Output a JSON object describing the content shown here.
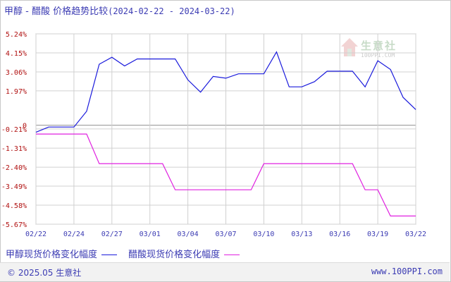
{
  "header": {
    "title": "甲醇 - 醋酸 价格趋势比较",
    "date_range": "(2024-02-22 - 2024-03-22)"
  },
  "watermark": {
    "name": "生意社",
    "url": "100PPI.COM"
  },
  "footer": {
    "copyright": "© 2025.05 生意社",
    "site": "www.100PPI.com"
  },
  "colors": {
    "methanol": "#1a1adc",
    "acetic": "#e020e0",
    "axis_text": "#b01010",
    "xtick_text": "#3b3bb3",
    "grid": "#d0d0d0"
  },
  "chart_data": {
    "type": "line",
    "ylim": [
      -5.67,
      5.24
    ],
    "y_ticks": [
      5.24,
      4.15,
      3.06,
      1.97,
      0,
      -0.21,
      -1.31,
      -2.4,
      -3.49,
      -4.58,
      -5.67
    ],
    "y_tick_labels": [
      "5.24%",
      "4.15%",
      "3.06%",
      "1.97%",
      "0",
      "-0.21%",
      "-1.31%",
      "-2.40%",
      "-3.49%",
      "-4.58%",
      "-5.67%"
    ],
    "x_ticks": [
      "02/22",
      "02/24",
      "02/27",
      "03/01",
      "03/04",
      "03/07",
      "03/10",
      "03/13",
      "03/16",
      "03/19",
      "03/22"
    ],
    "x_tick_index": [
      0,
      3,
      6,
      9,
      12,
      15,
      18,
      21,
      24,
      27,
      30
    ],
    "x_count": 31,
    "grid": true,
    "legend_position": "bottom-left",
    "series": [
      {
        "name": "甲醇现货价格变化幅度",
        "points": [
          [
            0,
            -0.4
          ],
          [
            1,
            -0.1
          ],
          [
            3,
            -0.1
          ],
          [
            4,
            0.8
          ],
          [
            5,
            3.5
          ],
          [
            6,
            3.9
          ],
          [
            7,
            3.4
          ],
          [
            8,
            3.8
          ],
          [
            10,
            3.8
          ],
          [
            11,
            3.8
          ],
          [
            12,
            2.6
          ],
          [
            13,
            1.9
          ],
          [
            14,
            2.8
          ],
          [
            15,
            2.7
          ],
          [
            16,
            2.95
          ],
          [
            18,
            2.95
          ],
          [
            19,
            4.2
          ],
          [
            20,
            2.2
          ],
          [
            21,
            2.2
          ],
          [
            22,
            2.5
          ],
          [
            23,
            3.1
          ],
          [
            25,
            3.1
          ],
          [
            26,
            2.2
          ],
          [
            27,
            3.7
          ],
          [
            28,
            3.2
          ],
          [
            29,
            1.6
          ],
          [
            30,
            0.9
          ]
        ]
      },
      {
        "name": "醋酸现货价格变化幅度",
        "points": [
          [
            0,
            -0.5
          ],
          [
            4,
            -0.5
          ],
          [
            5,
            -2.2
          ],
          [
            10,
            -2.2
          ],
          [
            11,
            -3.7
          ],
          [
            17,
            -3.7
          ],
          [
            18,
            -2.2
          ],
          [
            25,
            -2.2
          ],
          [
            26,
            -3.7
          ],
          [
            27,
            -3.7
          ],
          [
            28,
            -5.2
          ],
          [
            30,
            -5.2
          ]
        ]
      }
    ]
  }
}
